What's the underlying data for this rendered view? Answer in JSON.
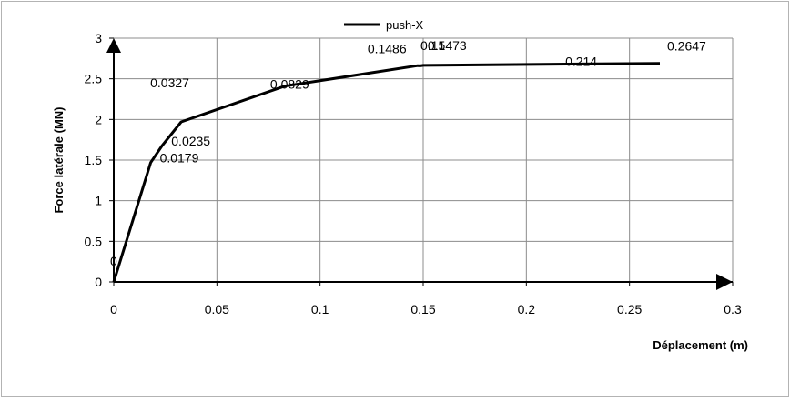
{
  "chart_data": {
    "type": "line",
    "title": "",
    "xlabel": "Déplacement (m)",
    "ylabel": "Force  latérale (MN)",
    "xlim": [
      0,
      0.3
    ],
    "ylim": [
      0,
      3
    ],
    "x_ticks": [
      0,
      0.05,
      0.1,
      0.15,
      0.2,
      0.25,
      0.3
    ],
    "x_tick_labels": [
      "0",
      "0.05",
      "0.1",
      "0.15",
      "0.2",
      "0.25",
      "0.3"
    ],
    "y_ticks": [
      0,
      0.5,
      1,
      1.5,
      2,
      2.5,
      3
    ],
    "y_tick_labels": [
      "0",
      "0.5",
      "1",
      "1.5",
      "2",
      "2.5",
      "3"
    ],
    "grid": true,
    "legend_position": "top-center",
    "series": [
      {
        "name": "push-X",
        "color": "#000000",
        "x": [
          0,
          0.0179,
          0.0235,
          0.0327,
          0.0829,
          0.1486,
          0.15,
          0.1473,
          0.214,
          0.2647
        ],
        "y": [
          0,
          1.47,
          1.68,
          1.97,
          2.41,
          2.66,
          2.665,
          2.662,
          2.68,
          2.69
        ]
      }
    ],
    "point_labels": [
      "0",
      "0.0179",
      "0.0235",
      "0.0327",
      "0.0829",
      "0.1486",
      "0.15",
      "0.1473",
      "0.214",
      "0.2647"
    ]
  }
}
